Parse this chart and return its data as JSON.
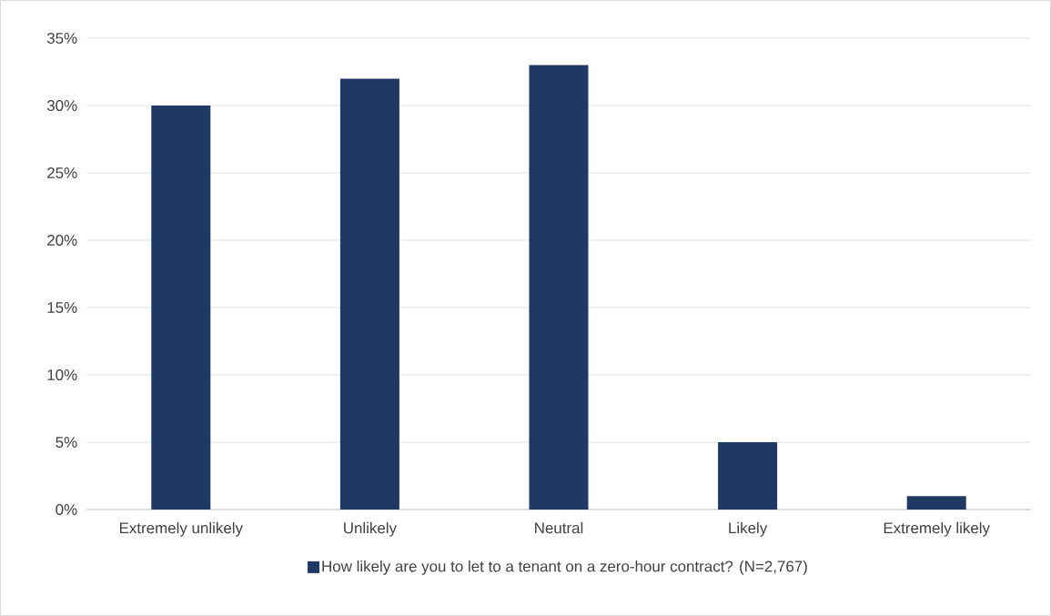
{
  "chart_data": {
    "type": "bar",
    "categories": [
      "Extremely unlikely",
      "Unlikely",
      "Neutral",
      "Likely",
      "Extremely likely"
    ],
    "series": [
      {
        "name": "How likely are you to let to a tenant on a zero-hour contract? (N=2,767)",
        "color": "#203864",
        "values": [
          30,
          32,
          33,
          5,
          1
        ]
      }
    ],
    "ylim": [
      0,
      35
    ],
    "yticks": [
      {
        "value": 0,
        "label": "0%"
      },
      {
        "value": 5,
        "label": "5%"
      },
      {
        "value": 10,
        "label": "10%"
      },
      {
        "value": 15,
        "label": "15%"
      },
      {
        "value": 20,
        "label": "20%"
      },
      {
        "value": 25,
        "label": "25%"
      },
      {
        "value": 30,
        "label": "30%"
      },
      {
        "value": 35,
        "label": "35%"
      }
    ],
    "grid": "y",
    "legend": "bottom"
  }
}
